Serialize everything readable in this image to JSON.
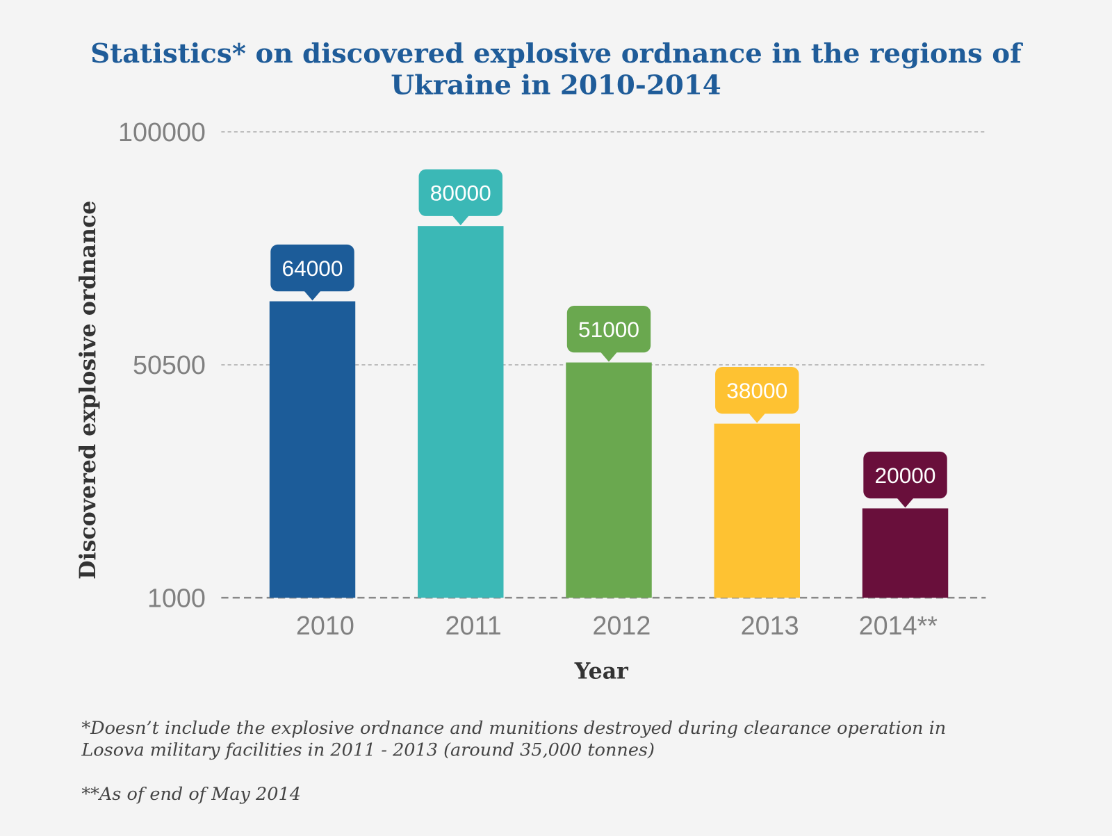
{
  "chart_data": {
    "type": "bar",
    "title_lines": [
      "Statistics* on discovered explosive ordnance in the regions of",
      "Ukraine in 2010-2014"
    ],
    "xlabel": "Year",
    "ylabel": "Discovered explosive ordnance",
    "categories": [
      "2010",
      "2011",
      "2012",
      "2013",
      "2014**"
    ],
    "values": [
      64000,
      80000,
      51000,
      38000,
      20000
    ],
    "data_labels": [
      "64000",
      "80000",
      "51000",
      "38000",
      "20000"
    ],
    "colors": [
      "#1c5c99",
      "#3bb8b6",
      "#6aa84f",
      "#fec232",
      "#690f3b"
    ],
    "ylim": [
      1000,
      100000
    ],
    "yticks": [
      1000,
      50500,
      100000
    ],
    "ytick_labels": [
      "1000",
      "50500",
      "100000"
    ],
    "grid": true,
    "grid_style": "dashed",
    "legend": "none"
  },
  "footnotes": [
    "*Doesn’t include the explosive ordnance and munitions destroyed during clearance operation in",
    "Losova military facilities in 2011 - 2013 (around 35,000 tonnes)",
    "**As of end of May 2014"
  ]
}
